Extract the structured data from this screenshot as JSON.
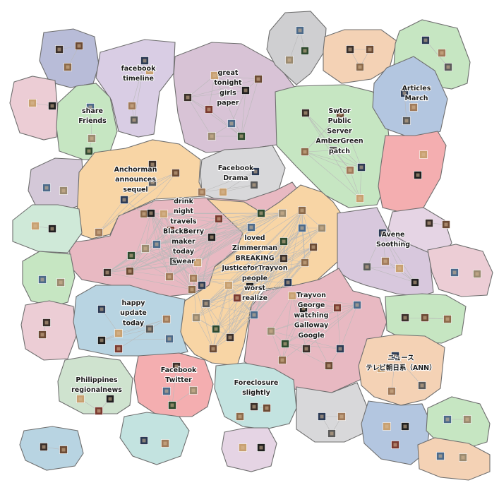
{
  "regions": [
    {
      "id": "r01",
      "color": "#b8bcd8",
      "words": []
    },
    {
      "id": "r02",
      "color": "#d9cde4",
      "words": [
        "facebook",
        "timeline"
      ]
    },
    {
      "id": "r03",
      "color": "#d8c3d6",
      "words": [
        "great",
        "tonight",
        "girls",
        "paper"
      ]
    },
    {
      "id": "r04",
      "color": "#cfcfd1",
      "words": []
    },
    {
      "id": "r05",
      "color": "#f4d2b5",
      "words": []
    },
    {
      "id": "r06",
      "color": "#c6e6c2",
      "words": []
    },
    {
      "id": "r07",
      "color": "#eccdd5",
      "words": []
    },
    {
      "id": "r08",
      "color": "#c6e6c2",
      "words": [
        "share",
        "Friends"
      ]
    },
    {
      "id": "r09",
      "color": "#c6e6c2",
      "words": [
        "Swtor",
        "Public",
        "Server",
        "AmberGreen",
        "patch"
      ]
    },
    {
      "id": "r10",
      "color": "#b3c6e0",
      "words": [
        "Articles",
        "March"
      ]
    },
    {
      "id": "r11",
      "color": "#f4aeb0",
      "words": []
    },
    {
      "id": "r12",
      "color": "#d4c8d8",
      "words": []
    },
    {
      "id": "r13",
      "color": "#f8d5a5",
      "words": [
        "Anchorman",
        "announces",
        "sequel"
      ]
    },
    {
      "id": "r14",
      "color": "#d8d8da",
      "words": [
        "Facebook",
        "Drama"
      ]
    },
    {
      "id": "r15",
      "color": "#e8b9c2",
      "words": [
        "drink",
        "night",
        "travels",
        "BlackBerry",
        "maker",
        "today",
        "swear"
      ]
    },
    {
      "id": "r16",
      "color": "#f8d5a5",
      "words": [
        "loved",
        "Zimmerman",
        "BREAKING",
        "JusticeforTrayvon",
        "people",
        "worst",
        "realize"
      ]
    },
    {
      "id": "r17",
      "color": "#e5d4e4",
      "words": []
    },
    {
      "id": "r18",
      "color": "#d8c8dd",
      "words": [
        "Avene",
        "Soothing"
      ]
    },
    {
      "id": "r19",
      "color": "#cfe9d8",
      "words": []
    },
    {
      "id": "r20",
      "color": "#c6e6c2",
      "words": []
    },
    {
      "id": "r21",
      "color": "#eccdd5",
      "words": []
    },
    {
      "id": "r22",
      "color": "#b8d4e2",
      "words": [
        "happy",
        "update",
        "today"
      ]
    },
    {
      "id": "r23",
      "color": "#e8b9c2",
      "words": [
        "Trayvon",
        "George",
        "watching",
        "Galloway",
        "Google"
      ]
    },
    {
      "id": "r24",
      "color": "#eccdd5",
      "words": []
    },
    {
      "id": "r25",
      "color": "#c6e6c2",
      "words": []
    },
    {
      "id": "r26",
      "color": "#f4d2b5",
      "words": [
        "ニュース",
        "テレビ朝日系（ANN）"
      ]
    },
    {
      "id": "r27",
      "color": "#cfe3cf",
      "words": [
        "Philippines",
        "regionalnews"
      ]
    },
    {
      "id": "r28",
      "color": "#f4aeb0",
      "words": [
        "Facebook",
        "Twitter"
      ]
    },
    {
      "id": "r29",
      "color": "#c3e3e0",
      "words": [
        "Foreclosure",
        "slightly"
      ]
    },
    {
      "id": "r30",
      "color": "#d8d8da",
      "words": []
    },
    {
      "id": "r31",
      "color": "#b3c6e0",
      "words": []
    },
    {
      "id": "r32",
      "color": "#c6e6c2",
      "words": []
    },
    {
      "id": "r33",
      "color": "#b8d4e2",
      "words": []
    },
    {
      "id": "r34",
      "color": "#c3e3e0",
      "words": []
    },
    {
      "id": "r35",
      "color": "#e5d4e4",
      "words": []
    },
    {
      "id": "r36",
      "color": "#f4d2b5",
      "words": []
    }
  ]
}
